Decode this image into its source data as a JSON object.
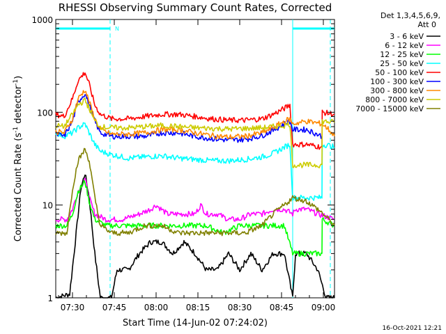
{
  "chart_data": {
    "type": "line",
    "title": "RHESSI Observing Summary Count Rates, Corrected",
    "xlabel": "Start Time (14-Jun-02 07:24:02)",
    "ylabel_main": "Corrected Count Rate (s",
    "ylabel_sup1": "-1",
    "ylabel_mid": " detector",
    "ylabel_sup2": "-1",
    "ylabel_end": ")",
    "yscale": "log",
    "ylim": [
      1,
      1000
    ],
    "xlim_minutes": [
      0,
      100
    ],
    "x_ticks": [
      {
        "minutes": 6,
        "label": "07:30"
      },
      {
        "minutes": 21,
        "label": "07:45"
      },
      {
        "minutes": 36,
        "label": "08:00"
      },
      {
        "minutes": 51,
        "label": "08:15"
      },
      {
        "minutes": 66,
        "label": "08:30"
      },
      {
        "minutes": 81,
        "label": "08:45"
      },
      {
        "minutes": 96,
        "label": "09:00"
      }
    ],
    "y_ticks": [
      {
        "value": 1,
        "label": "1"
      },
      {
        "value": 10,
        "label": "10"
      },
      {
        "value": 100,
        "label": "100"
      },
      {
        "value": 1000,
        "label": "1000"
      }
    ],
    "legend_header": [
      "Det 1,3,4,5,6,9,",
      "Att 0"
    ],
    "legend_position": "top-right",
    "attenuator_marker": "N",
    "attenuator_bars": [
      [
        0,
        19.5
      ],
      [
        85,
        100
      ]
    ],
    "dashed_time_markers": [
      19.5,
      85,
      98.5
    ],
    "night_segment_minutes": [
      85,
      98.5
    ],
    "series": [
      {
        "name": "3 - 6 keV",
        "color": "#000000",
        "points": [
          [
            0,
            1
          ],
          [
            5,
            1.1
          ],
          [
            7,
            4
          ],
          [
            9,
            15
          ],
          [
            10.5,
            22
          ],
          [
            12,
            12
          ],
          [
            14,
            3
          ],
          [
            16,
            1
          ],
          [
            20,
            1
          ],
          [
            22,
            2
          ],
          [
            26,
            2
          ],
          [
            30,
            3
          ],
          [
            34,
            4
          ],
          [
            38,
            4
          ],
          [
            42,
            3
          ],
          [
            46,
            4
          ],
          [
            50,
            3
          ],
          [
            54,
            2
          ],
          [
            58,
            2
          ],
          [
            62,
            3
          ],
          [
            66,
            2
          ],
          [
            70,
            3
          ],
          [
            74,
            2
          ],
          [
            78,
            3
          ],
          [
            82,
            3
          ],
          [
            85,
            1
          ],
          [
            86,
            3
          ],
          [
            90,
            3
          ],
          [
            94,
            2
          ],
          [
            97,
            1
          ],
          [
            100,
            1
          ]
        ]
      },
      {
        "name": "6 - 12 keV",
        "color": "#ff00ff",
        "points": [
          [
            0,
            7
          ],
          [
            4,
            7
          ],
          [
            6,
            9
          ],
          [
            8,
            14
          ],
          [
            10.5,
            19
          ],
          [
            12,
            12
          ],
          [
            14,
            8
          ],
          [
            18,
            7
          ],
          [
            24,
            7
          ],
          [
            30,
            8
          ],
          [
            34,
            9
          ],
          [
            36,
            10
          ],
          [
            40,
            8
          ],
          [
            44,
            8
          ],
          [
            48,
            8
          ],
          [
            50,
            8
          ],
          [
            52,
            10
          ],
          [
            54,
            8
          ],
          [
            58,
            8
          ],
          [
            62,
            7
          ],
          [
            66,
            7
          ],
          [
            70,
            8
          ],
          [
            74,
            8
          ],
          [
            78,
            9
          ],
          [
            82,
            9
          ],
          [
            85,
            8
          ],
          [
            86,
            9
          ],
          [
            90,
            9
          ],
          [
            94,
            8
          ],
          [
            100,
            7
          ]
        ]
      },
      {
        "name": "12 - 25 keV",
        "color": "#00ff00",
        "points": [
          [
            0,
            6
          ],
          [
            4,
            6
          ],
          [
            6,
            8
          ],
          [
            8,
            14
          ],
          [
            10.5,
            18
          ],
          [
            12,
            11
          ],
          [
            14,
            7
          ],
          [
            18,
            6
          ],
          [
            24,
            6
          ],
          [
            30,
            6
          ],
          [
            36,
            6
          ],
          [
            42,
            6
          ],
          [
            48,
            6
          ],
          [
            54,
            6
          ],
          [
            60,
            5
          ],
          [
            66,
            6
          ],
          [
            72,
            6
          ],
          [
            78,
            6
          ],
          [
            82,
            6
          ],
          [
            85,
            3
          ],
          [
            90,
            3
          ],
          [
            94,
            3
          ],
          [
            95.5,
            3
          ],
          [
            95.6,
            7
          ],
          [
            100,
            6
          ]
        ]
      },
      {
        "name": "25 - 50 keV",
        "color": "#00ffff",
        "points": [
          [
            0,
            60
          ],
          [
            3,
            55
          ],
          [
            6,
            60
          ],
          [
            8,
            68
          ],
          [
            10.5,
            75
          ],
          [
            12,
            60
          ],
          [
            14,
            45
          ],
          [
            16,
            38
          ],
          [
            20,
            35
          ],
          [
            26,
            32
          ],
          [
            32,
            33
          ],
          [
            38,
            34
          ],
          [
            44,
            32
          ],
          [
            50,
            31
          ],
          [
            56,
            30
          ],
          [
            62,
            30
          ],
          [
            68,
            31
          ],
          [
            74,
            33
          ],
          [
            78,
            36
          ],
          [
            82,
            42
          ],
          [
            84,
            45
          ],
          [
            85,
            12
          ],
          [
            95.5,
            12
          ],
          [
            95.6,
            45
          ],
          [
            98,
            44
          ],
          [
            100,
            42
          ]
        ]
      },
      {
        "name": "50 - 100 keV",
        "color": "#ff0000",
        "points": [
          [
            0,
            95
          ],
          [
            3,
            90
          ],
          [
            6,
            140
          ],
          [
            8,
            220
          ],
          [
            10.5,
            270
          ],
          [
            12,
            200
          ],
          [
            14,
            120
          ],
          [
            16,
            95
          ],
          [
            20,
            85
          ],
          [
            26,
            85
          ],
          [
            32,
            90
          ],
          [
            38,
            95
          ],
          [
            44,
            95
          ],
          [
            50,
            90
          ],
          [
            56,
            85
          ],
          [
            62,
            82
          ],
          [
            68,
            82
          ],
          [
            74,
            85
          ],
          [
            78,
            95
          ],
          [
            82,
            110
          ],
          [
            84,
            120
          ],
          [
            85,
            45
          ],
          [
            90,
            45
          ],
          [
            95.5,
            42
          ],
          [
            95.6,
            100
          ],
          [
            100,
            95
          ]
        ]
      },
      {
        "name": "100 - 300 keV",
        "color": "#0000ff",
        "points": [
          [
            0,
            58
          ],
          [
            3,
            55
          ],
          [
            6,
            80
          ],
          [
            8,
            130
          ],
          [
            10.5,
            160
          ],
          [
            12,
            120
          ],
          [
            14,
            80
          ],
          [
            16,
            60
          ],
          [
            20,
            55
          ],
          [
            26,
            55
          ],
          [
            32,
            55
          ],
          [
            38,
            60
          ],
          [
            44,
            60
          ],
          [
            50,
            55
          ],
          [
            56,
            52
          ],
          [
            62,
            50
          ],
          [
            68,
            51
          ],
          [
            74,
            56
          ],
          [
            78,
            64
          ],
          [
            82,
            75
          ],
          [
            84,
            80
          ],
          [
            85,
            65
          ],
          [
            90,
            65
          ],
          [
            95.5,
            55
          ]
        ]
      },
      {
        "name": "300 - 800 keV",
        "color": "#ff8800",
        "points": [
          [
            0,
            62
          ],
          [
            3,
            60
          ],
          [
            6,
            85
          ],
          [
            8,
            140
          ],
          [
            10.5,
            175
          ],
          [
            12,
            130
          ],
          [
            14,
            85
          ],
          [
            16,
            65
          ],
          [
            20,
            58
          ],
          [
            26,
            58
          ],
          [
            32,
            60
          ],
          [
            38,
            65
          ],
          [
            44,
            65
          ],
          [
            50,
            60
          ],
          [
            56,
            56
          ],
          [
            62,
            54
          ],
          [
            68,
            55
          ],
          [
            74,
            60
          ],
          [
            78,
            68
          ],
          [
            82,
            80
          ],
          [
            84,
            85
          ],
          [
            85,
            75
          ],
          [
            90,
            80
          ],
          [
            95.5,
            75
          ],
          [
            98,
            65
          ],
          [
            100,
            55
          ]
        ]
      },
      {
        "name": "800 - 7000 keV",
        "color": "#cccc00",
        "points": [
          [
            0,
            72
          ],
          [
            3,
            70
          ],
          [
            6,
            95
          ],
          [
            8,
            120
          ],
          [
            10.5,
            135
          ],
          [
            12,
            110
          ],
          [
            14,
            80
          ],
          [
            16,
            70
          ],
          [
            20,
            68
          ],
          [
            26,
            68
          ],
          [
            32,
            70
          ],
          [
            38,
            72
          ],
          [
            44,
            70
          ],
          [
            50,
            68
          ],
          [
            56,
            67
          ],
          [
            62,
            66
          ],
          [
            68,
            67
          ],
          [
            74,
            68
          ],
          [
            78,
            70
          ],
          [
            82,
            72
          ],
          [
            84,
            75
          ],
          [
            85,
            27
          ],
          [
            90,
            27
          ],
          [
            95.5,
            27
          ],
          [
            95.6,
            80
          ],
          [
            100,
            78
          ]
        ]
      },
      {
        "name": "7000 - 15000 keV",
        "color": "#808000",
        "points": [
          [
            0,
            5
          ],
          [
            4,
            5
          ],
          [
            6,
            15
          ],
          [
            8,
            30
          ],
          [
            10.5,
            40
          ],
          [
            12,
            30
          ],
          [
            14,
            12
          ],
          [
            16,
            6
          ],
          [
            20,
            5
          ],
          [
            26,
            5
          ],
          [
            32,
            6
          ],
          [
            38,
            6
          ],
          [
            44,
            5
          ],
          [
            50,
            5
          ],
          [
            56,
            5
          ],
          [
            62,
            5
          ],
          [
            68,
            5
          ],
          [
            74,
            6
          ],
          [
            78,
            8
          ],
          [
            82,
            10
          ],
          [
            85,
            12
          ],
          [
            90,
            11
          ],
          [
            94,
            9
          ],
          [
            96,
            8
          ],
          [
            100,
            6
          ]
        ]
      }
    ]
  },
  "footer_timestamp": "16-Oct-2021 12:21"
}
